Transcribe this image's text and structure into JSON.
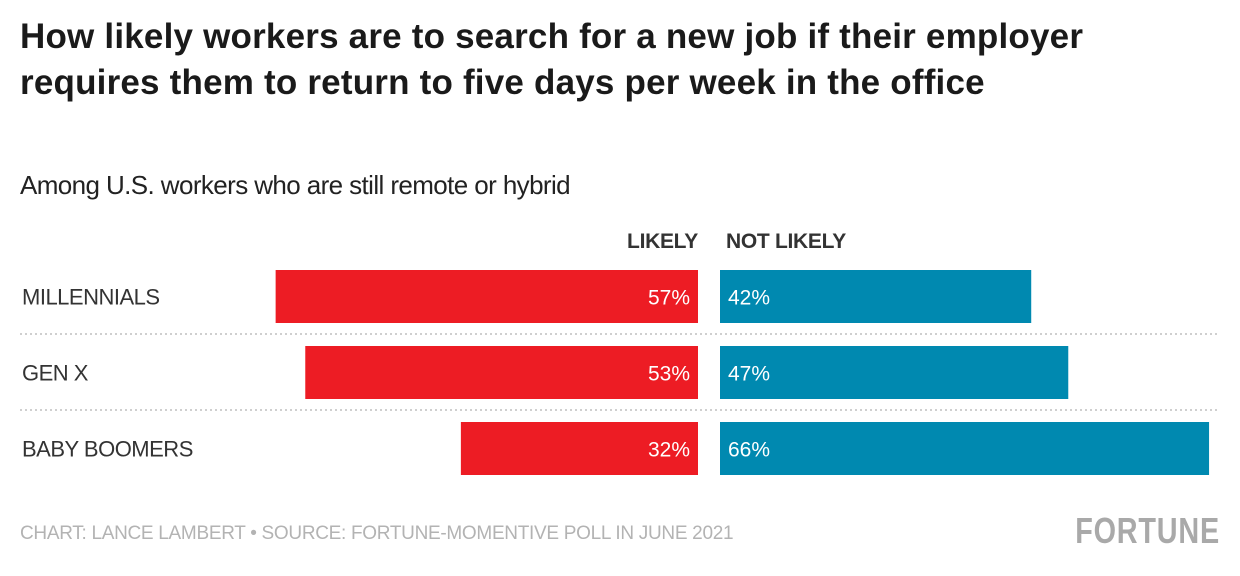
{
  "chart_data": {
    "type": "bar",
    "orientation": "horizontal-diverging",
    "title": "How likely workers are to search for a new job if their employer requires them to return to five days per week in the office",
    "subtitle": "Among U.S. workers who are still remote or hybrid",
    "categories": [
      "MILLENNIALS",
      "GEN X",
      "BABY BOOMERS"
    ],
    "series": [
      {
        "name": "LIKELY",
        "values": [
          57,
          53,
          32
        ],
        "labels": [
          "57%",
          "53%",
          "32%"
        ],
        "color": "#ed1c24"
      },
      {
        "name": "NOT LIKELY",
        "values": [
          42,
          47,
          66
        ],
        "labels": [
          "42%",
          "47%",
          "66%"
        ],
        "color": "#0089b0"
      }
    ],
    "unit": "%",
    "grid": false
  },
  "footer": {
    "credit": "CHART: LANCE LAMBERT • SOURCE: FORTUNE-MOMENTIVE POLL IN JUNE 2021",
    "logo": "FORTUNE"
  }
}
